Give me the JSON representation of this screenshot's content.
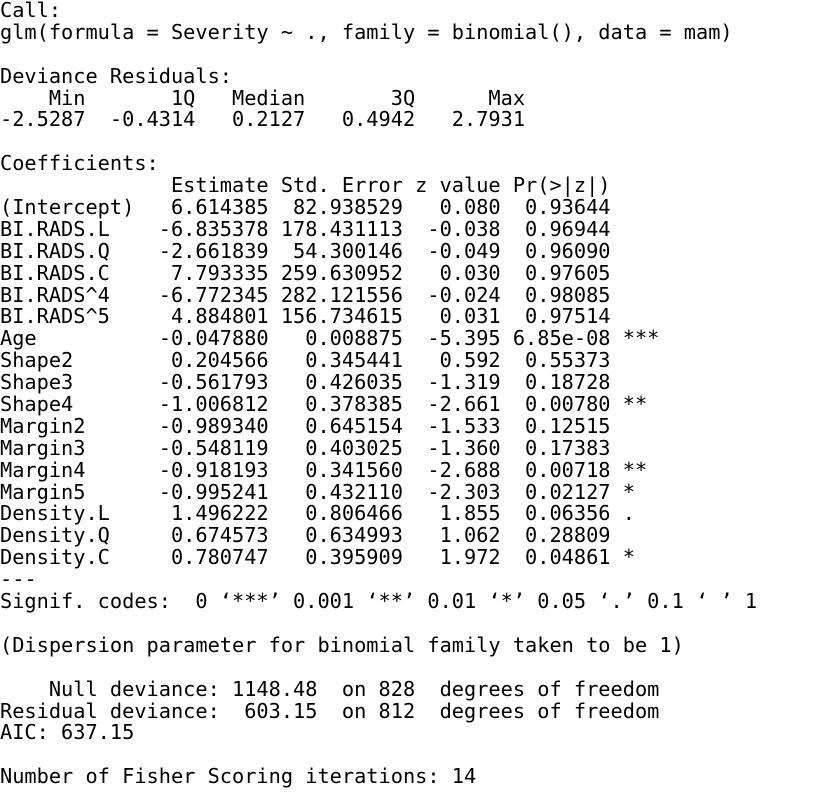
{
  "output_lines": [
    "Call:",
    "glm(formula = Severity ~ ., family = binomial(), data = mam)",
    "",
    "Deviance Residuals:",
    "    Min       1Q   Median       3Q      Max",
    "-2.5287  -0.4314   0.2127   0.4942   2.7931",
    "",
    "Coefficients:",
    "              Estimate Std. Error z value Pr(>|z|)",
    "(Intercept)   6.614385  82.938529   0.080  0.93644",
    "BI.RADS.L    -6.835378 178.431113  -0.038  0.96944",
    "BI.RADS.Q    -2.661839  54.300146  -0.049  0.96090",
    "BI.RADS.C     7.793335 259.630952   0.030  0.97605",
    "BI.RADS^4    -6.772345 282.121556  -0.024  0.98085",
    "BI.RADS^5     4.884801 156.734615   0.031  0.97514",
    "Age          -0.047880   0.008875  -5.395 6.85e-08 ***",
    "Shape2        0.204566   0.345441   0.592  0.55373",
    "Shape3       -0.561793   0.426035  -1.319  0.18728",
    "Shape4       -1.006812   0.378385  -2.661  0.00780 **",
    "Margin2      -0.989340   0.645154  -1.533  0.12515",
    "Margin3      -0.548119   0.403025  -1.360  0.17383",
    "Margin4      -0.918193   0.341560  -2.688  0.00718 **",
    "Margin5      -0.995241   0.432110  -2.303  0.02127 *",
    "Density.L     1.496222   0.806466   1.855  0.06356 .",
    "Density.Q     0.674573   0.634993   1.062  0.28809",
    "Density.C     0.780747   0.395909   1.972  0.04861 *",
    "---",
    "Signif. codes:  0 ‘***’ 0.001 ‘**’ 0.01 ‘*’ 0.05 ‘.’ 0.1 ‘ ’ 1",
    "",
    "(Dispersion parameter for binomial family taken to be 1)",
    "",
    "    Null deviance: 1148.48  on 828  degrees of freedom",
    "Residual deviance:  603.15  on 812  degrees of freedom",
    "AIC: 637.15",
    "",
    "Number of Fisher Scoring iterations: 14"
  ]
}
